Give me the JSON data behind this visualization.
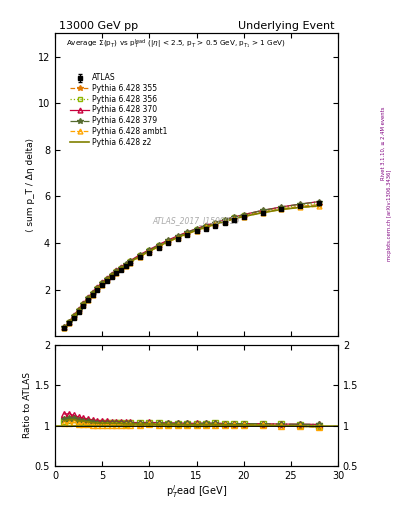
{
  "title_left": "13000 GeV pp",
  "title_right": "Underlying Event",
  "xlabel": "p_T^{l}ead [GeV]",
  "ylabel_main": "⟨ sum p_T / Δη delta⟩",
  "ylabel_ratio": "Ratio to ATLAS",
  "right_label_top": "Rivet 3.1.10, ≥ 2.4M events",
  "right_label_bot": "mcplots.cern.ch [arXiv:1306.3436]",
  "watermark": "ATLAS_2017_I1509919",
  "ylim_main": [
    0,
    13
  ],
  "ylim_ratio": [
    0.5,
    2.0
  ],
  "xlim": [
    0,
    30
  ],
  "x_data": [
    1.0,
    1.5,
    2.0,
    2.5,
    3.0,
    3.5,
    4.0,
    4.5,
    5.0,
    5.5,
    6.0,
    6.5,
    7.0,
    7.5,
    8.0,
    9.0,
    10.0,
    11.0,
    12.0,
    13.0,
    14.0,
    15.0,
    16.0,
    17.0,
    18.0,
    19.0,
    20.0,
    22.0,
    24.0,
    26.0,
    28.0
  ],
  "atlas_y": [
    0.35,
    0.55,
    0.8,
    1.05,
    1.3,
    1.55,
    1.78,
    2.0,
    2.2,
    2.38,
    2.55,
    2.7,
    2.85,
    3.0,
    3.13,
    3.38,
    3.58,
    3.8,
    4.0,
    4.18,
    4.35,
    4.5,
    4.62,
    4.75,
    4.88,
    5.0,
    5.1,
    5.28,
    5.45,
    5.58,
    5.7
  ],
  "atlas_yerr": [
    0.01,
    0.01,
    0.01,
    0.01,
    0.01,
    0.01,
    0.01,
    0.01,
    0.01,
    0.01,
    0.01,
    0.01,
    0.01,
    0.01,
    0.01,
    0.01,
    0.01,
    0.02,
    0.02,
    0.02,
    0.02,
    0.02,
    0.02,
    0.02,
    0.02,
    0.02,
    0.03,
    0.03,
    0.03,
    0.04,
    0.05
  ],
  "py355_y": [
    0.38,
    0.6,
    0.87,
    1.12,
    1.38,
    1.62,
    1.85,
    2.07,
    2.27,
    2.46,
    2.63,
    2.78,
    2.93,
    3.07,
    3.21,
    3.45,
    3.67,
    3.88,
    4.08,
    4.26,
    4.42,
    4.57,
    4.7,
    4.83,
    4.95,
    5.06,
    5.16,
    5.33,
    5.47,
    5.57,
    5.65
  ],
  "py356_y": [
    0.37,
    0.59,
    0.86,
    1.11,
    1.37,
    1.62,
    1.84,
    2.07,
    2.27,
    2.46,
    2.63,
    2.78,
    2.93,
    3.07,
    3.21,
    3.47,
    3.68,
    3.9,
    4.1,
    4.28,
    4.45,
    4.6,
    4.73,
    4.87,
    5.0,
    5.1,
    5.21,
    5.37,
    5.52,
    5.62,
    5.7
  ],
  "py370_y": [
    0.4,
    0.63,
    0.9,
    1.16,
    1.42,
    1.67,
    1.9,
    2.12,
    2.32,
    2.5,
    2.67,
    2.83,
    2.98,
    3.12,
    3.25,
    3.5,
    3.72,
    3.93,
    4.13,
    4.31,
    4.47,
    4.62,
    4.76,
    4.88,
    5.0,
    5.12,
    5.22,
    5.4,
    5.55,
    5.67,
    5.78
  ],
  "py379_y": [
    0.38,
    0.6,
    0.87,
    1.12,
    1.38,
    1.63,
    1.85,
    2.07,
    2.27,
    2.46,
    2.64,
    2.79,
    2.94,
    3.09,
    3.22,
    3.47,
    3.69,
    3.91,
    4.11,
    4.29,
    4.46,
    4.61,
    4.75,
    4.88,
    5.0,
    5.12,
    5.22,
    5.4,
    5.55,
    5.67,
    5.78
  ],
  "pyambt1_y": [
    0.36,
    0.57,
    0.83,
    1.07,
    1.33,
    1.57,
    1.79,
    2.01,
    2.21,
    2.4,
    2.57,
    2.73,
    2.88,
    3.02,
    3.16,
    3.41,
    3.63,
    3.84,
    4.04,
    4.22,
    4.38,
    4.53,
    4.67,
    4.8,
    4.92,
    5.03,
    5.13,
    5.3,
    5.44,
    5.53,
    5.57
  ],
  "pyz2_y": [
    0.37,
    0.59,
    0.86,
    1.11,
    1.37,
    1.62,
    1.84,
    2.06,
    2.26,
    2.45,
    2.62,
    2.77,
    2.92,
    3.06,
    3.19,
    3.44,
    3.65,
    3.86,
    4.06,
    4.24,
    4.4,
    4.55,
    4.68,
    4.81,
    4.93,
    5.04,
    5.14,
    5.3,
    5.44,
    5.53,
    5.6
  ],
  "colors": {
    "atlas": "#000000",
    "py355": "#E07800",
    "py356": "#8DB600",
    "py370": "#C8003C",
    "py379": "#556B2F",
    "pyambt1": "#FFA500",
    "pyz2": "#808000"
  },
  "yticks_main": [
    2,
    4,
    6,
    8,
    10,
    12
  ],
  "yticks_ratio": [
    0.5,
    1.0,
    1.5,
    2.0
  ]
}
